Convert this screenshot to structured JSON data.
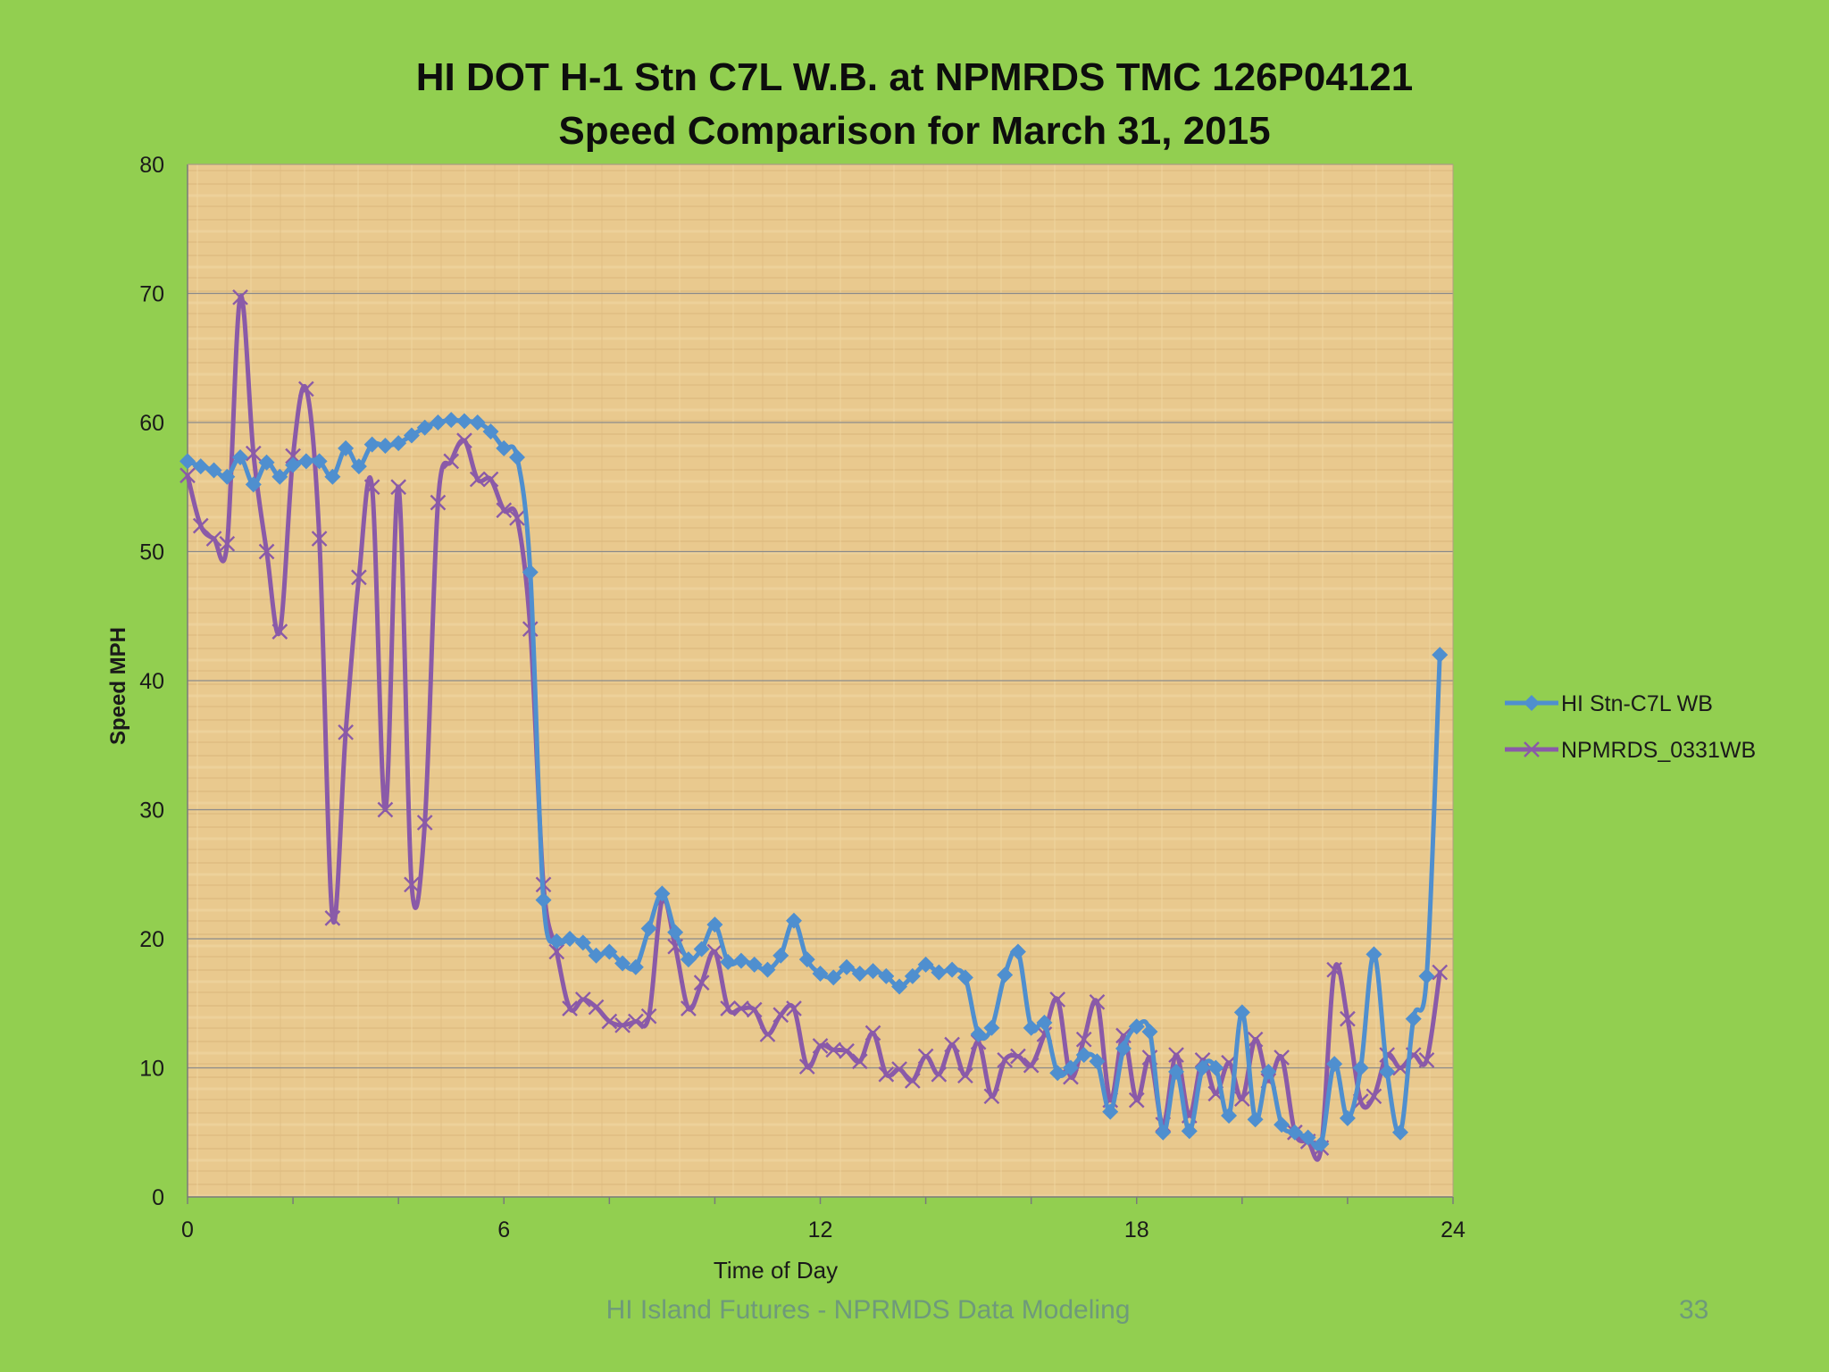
{
  "slide": {
    "footer": "HI Island Futures - NPRMDS Data Modeling",
    "page_number": "33",
    "background_color": "#92cf50"
  },
  "chart_data": {
    "type": "line",
    "title_line1": "HI DOT H-1 Stn C7L W.B. at NPMRDS TMC 126P04121",
    "title_line2": "Speed Comparison for March 31, 2015",
    "xlabel": "Time of Day",
    "ylabel": "Speed MPH",
    "xlim": [
      0,
      24
    ],
    "ylim": [
      0,
      80
    ],
    "xticks": [
      0,
      6,
      12,
      18,
      24
    ],
    "yticks": [
      0,
      10,
      20,
      30,
      40,
      50,
      60,
      70,
      80
    ],
    "grid": "horizontal",
    "legend_position": "right",
    "plot_background": "#e9c98e",
    "series": [
      {
        "name": "HI Stn-C7L WB",
        "color": "#4f8fcf",
        "marker": "diamond",
        "points": [
          [
            0.0,
            57.0
          ],
          [
            0.25,
            56.6
          ],
          [
            0.5,
            56.3
          ],
          [
            0.75,
            55.8
          ],
          [
            1.0,
            57.3
          ],
          [
            1.25,
            55.2
          ],
          [
            1.5,
            56.9
          ],
          [
            1.75,
            55.8
          ],
          [
            2.0,
            56.7
          ],
          [
            2.25,
            57.0
          ],
          [
            2.5,
            57.0
          ],
          [
            2.75,
            55.8
          ],
          [
            3.0,
            58.0
          ],
          [
            3.25,
            56.6
          ],
          [
            3.5,
            58.3
          ],
          [
            3.75,
            58.2
          ],
          [
            4.0,
            58.4
          ],
          [
            4.25,
            59.0
          ],
          [
            4.5,
            59.6
          ],
          [
            4.75,
            60.0
          ],
          [
            5.0,
            60.2
          ],
          [
            5.25,
            60.1
          ],
          [
            5.5,
            60.0
          ],
          [
            5.75,
            59.3
          ],
          [
            6.0,
            58.0
          ],
          [
            6.25,
            57.3
          ],
          [
            6.5,
            48.4
          ],
          [
            6.75,
            23.0
          ],
          [
            7.0,
            19.8
          ],
          [
            7.25,
            20.0
          ],
          [
            7.5,
            19.7
          ],
          [
            7.75,
            18.7
          ],
          [
            8.0,
            19.0
          ],
          [
            8.25,
            18.1
          ],
          [
            8.5,
            17.8
          ],
          [
            8.75,
            20.8
          ],
          [
            9.0,
            23.5
          ],
          [
            9.25,
            20.5
          ],
          [
            9.5,
            18.4
          ],
          [
            9.75,
            19.2
          ],
          [
            10.0,
            21.1
          ],
          [
            10.25,
            18.2
          ],
          [
            10.5,
            18.3
          ],
          [
            10.75,
            18.0
          ],
          [
            11.0,
            17.6
          ],
          [
            11.25,
            18.7
          ],
          [
            11.5,
            21.4
          ],
          [
            11.75,
            18.4
          ],
          [
            12.0,
            17.3
          ],
          [
            12.25,
            17.0
          ],
          [
            12.5,
            17.8
          ],
          [
            12.75,
            17.3
          ],
          [
            13.0,
            17.5
          ],
          [
            13.25,
            17.1
          ],
          [
            13.5,
            16.3
          ],
          [
            13.75,
            17.1
          ],
          [
            14.0,
            18.0
          ],
          [
            14.25,
            17.4
          ],
          [
            14.5,
            17.6
          ],
          [
            14.75,
            17.0
          ],
          [
            15.0,
            12.6
          ],
          [
            15.25,
            13.1
          ],
          [
            15.5,
            17.2
          ],
          [
            15.75,
            19.0
          ],
          [
            16.0,
            13.1
          ],
          [
            16.25,
            13.5
          ],
          [
            16.5,
            9.6
          ],
          [
            16.75,
            10.0
          ],
          [
            17.0,
            11.0
          ],
          [
            17.25,
            10.5
          ],
          [
            17.5,
            6.6
          ],
          [
            17.75,
            11.5
          ],
          [
            18.0,
            13.2
          ],
          [
            18.25,
            12.8
          ],
          [
            18.5,
            5.0
          ],
          [
            18.75,
            9.7
          ],
          [
            19.0,
            5.1
          ],
          [
            19.25,
            10.0
          ],
          [
            19.5,
            10.0
          ],
          [
            19.75,
            6.3
          ],
          [
            20.0,
            14.3
          ],
          [
            20.25,
            6.0
          ],
          [
            20.5,
            9.7
          ],
          [
            20.75,
            5.6
          ],
          [
            21.0,
            5.0
          ],
          [
            21.25,
            4.6
          ],
          [
            21.5,
            4.1
          ],
          [
            21.75,
            10.3
          ],
          [
            22.0,
            6.1
          ],
          [
            22.25,
            10.0
          ],
          [
            22.5,
            18.8
          ],
          [
            22.75,
            9.7
          ],
          [
            23.0,
            5.0
          ],
          [
            23.25,
            13.8
          ],
          [
            23.5,
            17.1
          ],
          [
            23.75,
            42.0
          ]
        ]
      },
      {
        "name": "NPMRDS_0331WB",
        "color": "#8a5aa8",
        "marker": "x",
        "points": [
          [
            0.0,
            55.9
          ],
          [
            0.25,
            52.0
          ],
          [
            0.5,
            51.0
          ],
          [
            0.75,
            50.6
          ],
          [
            1.0,
            69.7
          ],
          [
            1.25,
            57.6
          ],
          [
            1.5,
            50.0
          ],
          [
            1.75,
            43.8
          ],
          [
            2.0,
            57.4
          ],
          [
            2.25,
            62.6
          ],
          [
            2.5,
            51.0
          ],
          [
            2.75,
            21.6
          ],
          [
            3.0,
            36.0
          ],
          [
            3.25,
            48.0
          ],
          [
            3.5,
            55.0
          ],
          [
            3.75,
            30.0
          ],
          [
            4.0,
            55.0
          ],
          [
            4.25,
            24.2
          ],
          [
            4.5,
            29.0
          ],
          [
            4.75,
            53.8
          ],
          [
            5.0,
            57.0
          ],
          [
            5.25,
            58.6
          ],
          [
            5.5,
            55.6
          ],
          [
            5.75,
            55.6
          ],
          [
            6.0,
            53.2
          ],
          [
            6.25,
            52.6
          ],
          [
            6.5,
            44.0
          ],
          [
            6.75,
            24.2
          ],
          [
            7.0,
            19.0
          ],
          [
            7.25,
            14.6
          ],
          [
            7.5,
            15.3
          ],
          [
            7.75,
            14.7
          ],
          [
            8.0,
            13.6
          ],
          [
            8.25,
            13.3
          ],
          [
            8.5,
            13.6
          ],
          [
            8.75,
            14.0
          ],
          [
            9.0,
            23.0
          ],
          [
            9.25,
            19.4
          ],
          [
            9.5,
            14.6
          ],
          [
            9.75,
            16.6
          ],
          [
            10.0,
            19.0
          ],
          [
            10.25,
            14.6
          ],
          [
            10.5,
            14.6
          ],
          [
            10.75,
            14.5
          ],
          [
            11.0,
            12.6
          ],
          [
            11.25,
            14.1
          ],
          [
            11.5,
            14.6
          ],
          [
            11.75,
            10.1
          ],
          [
            12.0,
            11.7
          ],
          [
            12.25,
            11.4
          ],
          [
            12.5,
            11.3
          ],
          [
            12.75,
            10.5
          ],
          [
            13.0,
            12.7
          ],
          [
            13.25,
            9.5
          ],
          [
            13.5,
            9.9
          ],
          [
            13.75,
            9.0
          ],
          [
            14.0,
            10.9
          ],
          [
            14.25,
            9.5
          ],
          [
            14.5,
            11.8
          ],
          [
            14.75,
            9.4
          ],
          [
            15.0,
            12.0
          ],
          [
            15.25,
            7.8
          ],
          [
            15.5,
            10.6
          ],
          [
            15.75,
            10.9
          ],
          [
            16.0,
            10.2
          ],
          [
            16.25,
            12.6
          ],
          [
            16.5,
            15.3
          ],
          [
            16.75,
            9.3
          ],
          [
            17.0,
            12.2
          ],
          [
            17.25,
            15.1
          ],
          [
            17.5,
            7.5
          ],
          [
            17.75,
            12.5
          ],
          [
            18.0,
            7.5
          ],
          [
            18.25,
            10.8
          ],
          [
            18.5,
            5.6
          ],
          [
            18.75,
            11.0
          ],
          [
            19.0,
            6.3
          ],
          [
            19.25,
            10.6
          ],
          [
            19.5,
            8.0
          ],
          [
            19.75,
            10.4
          ],
          [
            20.0,
            7.6
          ],
          [
            20.25,
            12.2
          ],
          [
            20.5,
            9.0
          ],
          [
            20.75,
            10.8
          ],
          [
            21.0,
            5.0
          ],
          [
            21.25,
            4.3
          ],
          [
            21.5,
            3.8
          ],
          [
            21.75,
            17.6
          ],
          [
            22.0,
            13.8
          ],
          [
            22.25,
            7.4
          ],
          [
            22.5,
            7.8
          ],
          [
            22.75,
            11.0
          ],
          [
            23.0,
            10.0
          ],
          [
            23.25,
            11.0
          ],
          [
            23.5,
            10.6
          ],
          [
            23.75,
            17.4
          ]
        ]
      }
    ]
  }
}
